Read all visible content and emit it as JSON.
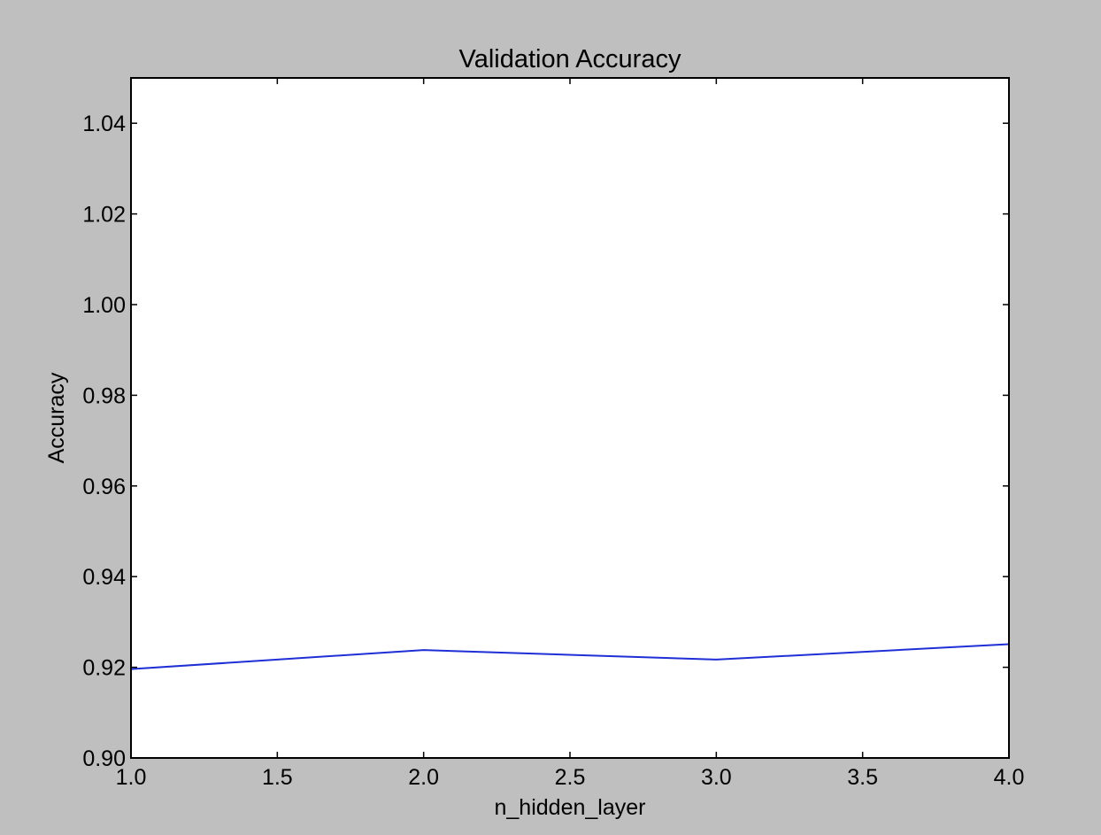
{
  "chart_data": {
    "type": "line",
    "title": "Validation Accuracy",
    "xlabel": "n_hidden_layer",
    "ylabel": "Accuracy",
    "xlim": [
      1.0,
      4.0
    ],
    "ylim": [
      0.9,
      1.05
    ],
    "xticks": [
      "1.0",
      "1.5",
      "2.0",
      "2.5",
      "3.0",
      "3.5",
      "4.0"
    ],
    "yticks": [
      "0.90",
      "0.92",
      "0.94",
      "0.96",
      "0.98",
      "1.00",
      "1.02",
      "1.04"
    ],
    "grid": false,
    "series": [
      {
        "x": [
          1,
          2,
          3,
          4
        ],
        "y": [
          0.9196,
          0.9238,
          0.9217,
          0.9251
        ],
        "color": "#1f2fd6"
      }
    ]
  },
  "colors": {
    "figure_background": "#bfbfbf",
    "axes_background": "#ffffff",
    "axes_edge": "#000000"
  }
}
